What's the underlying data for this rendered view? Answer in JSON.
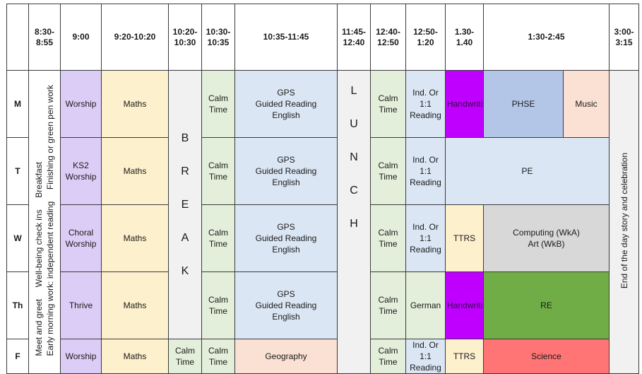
{
  "header": {
    "times": [
      "8:30-\n8:55",
      "9:00",
      "9:20-10:20",
      "10:20-\n10:30",
      "10:30-\n10:35",
      "10:35-11:45",
      "11:45-\n12:40",
      "12:40-\n12:50",
      "12:50-\n1:20",
      "1.30-\n1.40",
      "1:30-2:45",
      "3:00-\n3:15"
    ]
  },
  "days": [
    "M",
    "T",
    "W",
    "Th",
    "F"
  ],
  "morning": {
    "line1": "Meet and greet     Well-being check ins     Breakfast",
    "line2": "Early morning work: independent reading     Finishing or green pen work"
  },
  "break_letters": [
    "B",
    "R",
    "E",
    "A",
    "K"
  ],
  "lunch_letters": [
    "L",
    "U",
    "N",
    "C",
    "H"
  ],
  "end_of_day": "End of the day story and celebration",
  "cells": {
    "worship": "Worship",
    "ks2_worship": "KS2\nWorship",
    "choral_worship": "Choral\nWorship",
    "thrive": "Thrive",
    "maths": "Maths",
    "calm": "Calm\nTime",
    "gps_block": "GPS\nGuided Reading\nEnglish",
    "geography": "Geography",
    "ind": "Ind. Or\n1:1\nReading",
    "german": "German",
    "handwriting": "Handwriting",
    "ttrs": "TTRS",
    "phse": "PHSE",
    "music": "Music",
    "pe": "PE",
    "computing_art": "Computing (WkA)\nArt (WkB)",
    "re": "RE",
    "science": "Science"
  },
  "colors": {
    "worship": "#dccdf6",
    "maths": "#fdf0cc",
    "calm": "#e3efda",
    "english": "#dbe6f4",
    "break": "#f1f1f1",
    "handwriting": "#c000ff",
    "phse": "#b4c6e7",
    "music": "#fbe1d4",
    "computing": "#d8d8d8",
    "re": "#70ad47",
    "science": "#ff7474"
  }
}
